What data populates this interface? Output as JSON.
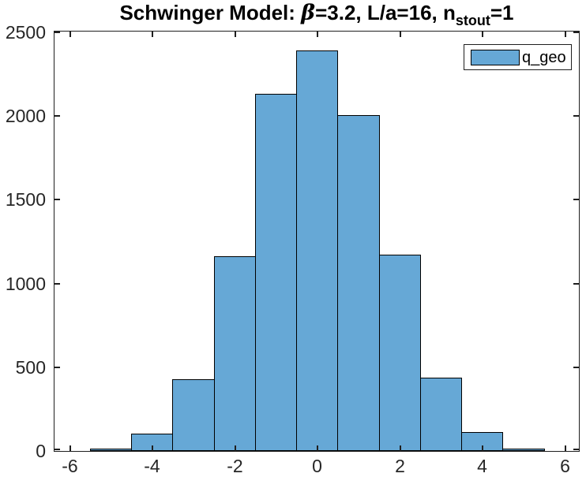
{
  "figure": {
    "background": "#ffffff",
    "title": {
      "prefix": "Schwinger Model: ",
      "beta_symbol": "β",
      "middle": "=3.2, L/a=16, n",
      "subscript": "stout",
      "suffix": "=1"
    },
    "legend": {
      "label": "q_geo",
      "swatch_color": "#66A8D6",
      "swatch_border": "#000000",
      "position": "top-right"
    },
    "axes": {
      "axis_color": "#1f1f1f",
      "tick_label_color": "#262626"
    }
  },
  "chart_data": {
    "type": "bar",
    "subtype": "histogram",
    "title": "Schwinger Model: β=3.2, L/a=16, n_stout=1",
    "series_name": "q_geo",
    "bin_centers": [
      -5,
      -4,
      -3,
      -2,
      -1,
      0,
      1,
      2,
      3,
      4,
      5
    ],
    "bin_width": 1,
    "values": [
      15,
      105,
      430,
      1165,
      2135,
      2390,
      2005,
      1170,
      440,
      112,
      15
    ],
    "bar_fill": "#66A8D6",
    "bar_edge": "#000000",
    "xlim": [
      -6.36,
      6.33
    ],
    "ylim": [
      0,
      2500
    ],
    "x_ticks": [
      -6,
      -4,
      -2,
      0,
      2,
      4,
      6
    ],
    "y_ticks": [
      0,
      500,
      1000,
      1500,
      2000,
      2500
    ],
    "xlabel": "",
    "ylabel": "",
    "grid": false,
    "legend_position": "top-right"
  }
}
